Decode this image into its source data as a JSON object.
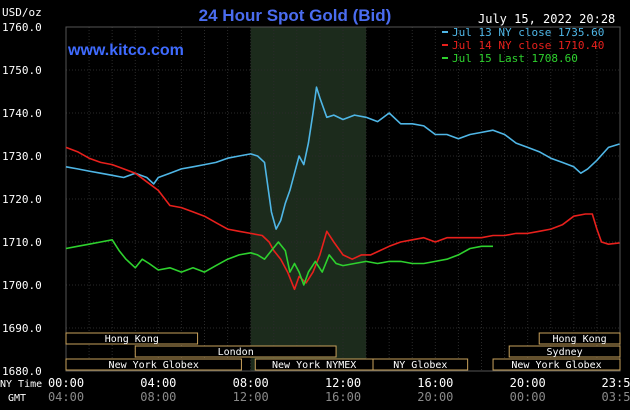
{
  "chart_data": {
    "type": "line",
    "title": "24 Hour Spot Gold (Bid)",
    "watermark": "www.kitco.com",
    "timestamp": "July 15, 2022 20:28",
    "ylabel": "USD/oz",
    "ylim": [
      1680,
      1760
    ],
    "yticks": [
      "1760.0",
      "1750.0",
      "1740.0",
      "1730.0",
      "1720.0",
      "1710.0",
      "1700.0",
      "1690.0",
      "1680.0"
    ],
    "x_axis_labels": {
      "primary_name": "NY Time",
      "secondary_name": "GMT",
      "primary": [
        "00:00",
        "04:00",
        "08:00",
        "12:00",
        "16:00",
        "20:00",
        "23:59"
      ],
      "secondary": [
        "04:00",
        "08:00",
        "12:00",
        "16:00",
        "20:00",
        "00:00",
        "03:59"
      ]
    },
    "legend_position": "top-right",
    "series": [
      {
        "name": "Jul 13 NY close 1735.60",
        "color": "#4fb6e6",
        "points": [
          [
            0,
            1727.5
          ],
          [
            0.5,
            1727
          ],
          [
            1,
            1726.5
          ],
          [
            1.5,
            1726
          ],
          [
            2,
            1725.5
          ],
          [
            2.5,
            1725
          ],
          [
            3,
            1726
          ],
          [
            3.5,
            1725
          ],
          [
            3.8,
            1723.5
          ],
          [
            4,
            1725
          ],
          [
            4.5,
            1726
          ],
          [
            5,
            1727
          ],
          [
            5.5,
            1727.5
          ],
          [
            6,
            1728
          ],
          [
            6.5,
            1728.5
          ],
          [
            7,
            1729.5
          ],
          [
            7.5,
            1730
          ],
          [
            8,
            1730.5
          ],
          [
            8.3,
            1730
          ],
          [
            8.6,
            1728.5
          ],
          [
            8.9,
            1717
          ],
          [
            9.1,
            1713
          ],
          [
            9.3,
            1715
          ],
          [
            9.5,
            1719
          ],
          [
            9.7,
            1722
          ],
          [
            9.9,
            1726
          ],
          [
            10.1,
            1730
          ],
          [
            10.3,
            1728
          ],
          [
            10.5,
            1733
          ],
          [
            10.7,
            1740
          ],
          [
            10.85,
            1746
          ],
          [
            11,
            1743.5
          ],
          [
            11.3,
            1739
          ],
          [
            11.6,
            1739.5
          ],
          [
            12,
            1738.5
          ],
          [
            12.5,
            1739.5
          ],
          [
            13,
            1739
          ],
          [
            13.5,
            1738
          ],
          [
            14,
            1740
          ],
          [
            14.5,
            1737.5
          ],
          [
            15,
            1737.5
          ],
          [
            15.5,
            1737
          ],
          [
            16,
            1735
          ],
          [
            16.5,
            1735
          ],
          [
            17,
            1734
          ],
          [
            17.5,
            1735
          ],
          [
            18,
            1735.5
          ],
          [
            18.5,
            1736
          ],
          [
            19,
            1735
          ],
          [
            19.5,
            1733
          ],
          [
            20,
            1732
          ],
          [
            20.5,
            1731
          ],
          [
            21,
            1729.5
          ],
          [
            21.5,
            1728.5
          ],
          [
            22,
            1727.5
          ],
          [
            22.3,
            1726
          ],
          [
            22.6,
            1727
          ],
          [
            23,
            1729
          ],
          [
            23.5,
            1732
          ],
          [
            23.98,
            1732.8
          ]
        ]
      },
      {
        "name": "Jul 14 NY close 1710.40",
        "color": "#e8201c",
        "points": [
          [
            0,
            1732
          ],
          [
            0.5,
            1731
          ],
          [
            1,
            1729.5
          ],
          [
            1.5,
            1728.5
          ],
          [
            2,
            1728
          ],
          [
            2.5,
            1727
          ],
          [
            3,
            1726
          ],
          [
            3.5,
            1724
          ],
          [
            4,
            1722
          ],
          [
            4.5,
            1718.5
          ],
          [
            5,
            1718
          ],
          [
            5.5,
            1717
          ],
          [
            6,
            1716
          ],
          [
            6.5,
            1714.5
          ],
          [
            7,
            1713
          ],
          [
            7.5,
            1712.5
          ],
          [
            8,
            1712
          ],
          [
            8.5,
            1711.5
          ],
          [
            8.8,
            1710
          ],
          [
            9,
            1708
          ],
          [
            9.3,
            1706
          ],
          [
            9.6,
            1703
          ],
          [
            9.9,
            1699
          ],
          [
            10.1,
            1702
          ],
          [
            10.4,
            1700.5
          ],
          [
            10.7,
            1703
          ],
          [
            11,
            1707
          ],
          [
            11.3,
            1712.5
          ],
          [
            11.6,
            1710
          ],
          [
            12,
            1707
          ],
          [
            12.4,
            1706
          ],
          [
            12.8,
            1707
          ],
          [
            13.2,
            1707
          ],
          [
            13.6,
            1708
          ],
          [
            14,
            1709
          ],
          [
            14.5,
            1710
          ],
          [
            15,
            1710.5
          ],
          [
            15.5,
            1711
          ],
          [
            16,
            1710
          ],
          [
            16.5,
            1711
          ],
          [
            17,
            1711
          ],
          [
            17.5,
            1711
          ],
          [
            18,
            1711
          ],
          [
            18.5,
            1711.5
          ],
          [
            19,
            1711.5
          ],
          [
            19.5,
            1712
          ],
          [
            20,
            1712
          ],
          [
            20.5,
            1712.5
          ],
          [
            21,
            1713
          ],
          [
            21.5,
            1714
          ],
          [
            22,
            1716
          ],
          [
            22.5,
            1716.5
          ],
          [
            22.8,
            1716.5
          ],
          [
            23,
            1713
          ],
          [
            23.2,
            1710
          ],
          [
            23.5,
            1709.5
          ],
          [
            23.98,
            1709.8
          ]
        ]
      },
      {
        "name": "Jul 15 Last 1708.60",
        "color": "#2ed12e",
        "points": [
          [
            0,
            1708.5
          ],
          [
            0.5,
            1709
          ],
          [
            1,
            1709.5
          ],
          [
            1.5,
            1710
          ],
          [
            2,
            1710.5
          ],
          [
            2.3,
            1708
          ],
          [
            2.6,
            1706
          ],
          [
            3,
            1704
          ],
          [
            3.3,
            1706
          ],
          [
            3.6,
            1705
          ],
          [
            4,
            1703.5
          ],
          [
            4.5,
            1704
          ],
          [
            5,
            1703
          ],
          [
            5.5,
            1704
          ],
          [
            6,
            1703
          ],
          [
            6.5,
            1704.5
          ],
          [
            7,
            1706
          ],
          [
            7.5,
            1707
          ],
          [
            8,
            1707.5
          ],
          [
            8.3,
            1707
          ],
          [
            8.6,
            1706
          ],
          [
            8.9,
            1708
          ],
          [
            9.2,
            1710
          ],
          [
            9.5,
            1708
          ],
          [
            9.7,
            1703
          ],
          [
            9.9,
            1705
          ],
          [
            10.1,
            1703
          ],
          [
            10.3,
            1700
          ],
          [
            10.5,
            1703
          ],
          [
            10.8,
            1705.5
          ],
          [
            11.1,
            1703
          ],
          [
            11.4,
            1707
          ],
          [
            11.7,
            1705
          ],
          [
            12,
            1704.5
          ],
          [
            12.5,
            1705
          ],
          [
            13,
            1705.5
          ],
          [
            13.5,
            1705
          ],
          [
            14,
            1705.5
          ],
          [
            14.5,
            1705.5
          ],
          [
            15,
            1705
          ],
          [
            15.5,
            1705
          ],
          [
            16,
            1705.5
          ],
          [
            16.5,
            1706
          ],
          [
            17,
            1707
          ],
          [
            17.5,
            1708.5
          ],
          [
            18,
            1709
          ],
          [
            18.5,
            1709
          ]
        ]
      }
    ],
    "highlight_range": [
      8,
      13
    ],
    "market_sessions": [
      {
        "name": "Hong Kong",
        "start": 0,
        "end": 5.7
      },
      {
        "name": "Hong Kong",
        "start": 20.5,
        "end": 24
      },
      {
        "name": "London",
        "start": 3,
        "end": 11.7
      },
      {
        "name": "Sydney",
        "start": 19.2,
        "end": 24
      },
      {
        "name": "New York Globex",
        "start": 0,
        "end": 7.6
      },
      {
        "name": "New York NYMEX",
        "start": 8.2,
        "end": 13.3
      },
      {
        "name": "NY Globex",
        "start": 13.3,
        "end": 17.4
      },
      {
        "name": "New York Globex",
        "start": 18.5,
        "end": 24
      }
    ]
  }
}
